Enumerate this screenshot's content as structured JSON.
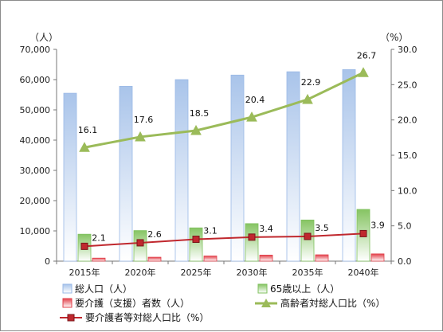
{
  "chart_data": {
    "type": "bar",
    "categories": [
      "2015年",
      "2020年",
      "2025年",
      "2030年",
      "2035年",
      "2040年"
    ],
    "y_left": {
      "unit": "（人）",
      "ylim": [
        0,
        70000
      ],
      "ticks": [
        "0",
        "10,000",
        "20,000",
        "30,000",
        "40,000",
        "50,000",
        "60,000",
        "70,000"
      ],
      "tick_values": [
        0,
        10000,
        20000,
        30000,
        40000,
        50000,
        60000,
        70000
      ]
    },
    "y_right": {
      "unit": "（%）",
      "ylim": [
        0,
        30
      ],
      "ticks": [
        "0.0",
        "5.0",
        "10.0",
        "15.0",
        "20.0",
        "25.0",
        "30.0"
      ],
      "tick_values": [
        0,
        5,
        10,
        15,
        20,
        25,
        30
      ]
    },
    "series": [
      {
        "name": "総人口（人）",
        "kind": "bar",
        "axis": "left",
        "color": "#9ab9e6",
        "values": [
          55500,
          57800,
          60000,
          61500,
          62600,
          63300
        ]
      },
      {
        "name": "65歳以上（人）",
        "kind": "bar",
        "axis": "left",
        "color": "#7fc05e",
        "values": [
          8900,
          10100,
          11000,
          12400,
          13600,
          17100
        ]
      },
      {
        "name": "要介護（支援）者数（人）",
        "kind": "bar",
        "axis": "left",
        "color": "#e2414b",
        "values": [
          1000,
          1300,
          1700,
          2000,
          2100,
          2400
        ]
      },
      {
        "name": "高齢者対総人口比（%）",
        "kind": "line",
        "axis": "right",
        "color": "#9bbb59",
        "marker": "triangle",
        "values": [
          16.1,
          17.6,
          18.5,
          20.4,
          22.9,
          26.7
        ],
        "labels": [
          "16.1",
          "17.6",
          "18.5",
          "20.4",
          "22.9",
          "26.7"
        ]
      },
      {
        "name": "要介護者等対総人口比（%）",
        "kind": "line",
        "axis": "right",
        "color": "#c0282e",
        "marker": "square",
        "values": [
          2.1,
          2.6,
          3.1,
          3.4,
          3.5,
          3.9
        ],
        "labels": [
          "2.1",
          "2.6",
          "3.1",
          "3.4",
          "3.5",
          "3.9"
        ]
      }
    ],
    "grid": false,
    "legend": "bottom"
  }
}
